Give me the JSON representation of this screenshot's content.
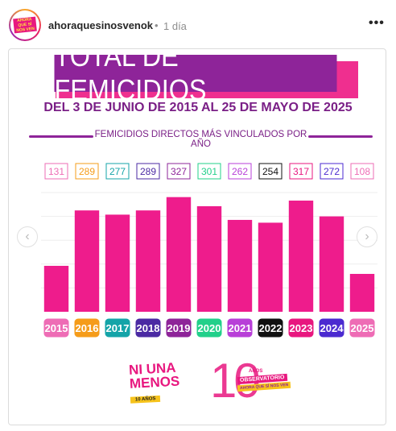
{
  "post": {
    "username": "ahoraquesinosvenok",
    "separator": "•",
    "time": "1 día",
    "more_icon": "more-horizontal-icon"
  },
  "avatar_logo_text": "AHORA QUE SÍ NOS VEN",
  "chart_data": {
    "type": "bar",
    "title": "TOTAL DE FEMICIDIOS",
    "subtitle": "DEL 3 DE JUNIO DE 2015 AL 25 DE MAYO DE 2025",
    "section_label": "FEMICIDIOS DIRECTOS MÁS VINCULADOS POR AÑO",
    "categories": [
      "2015",
      "2016",
      "2017",
      "2018",
      "2019",
      "2020",
      "2021",
      "2022",
      "2023",
      "2024",
      "2025"
    ],
    "values": [
      131,
      289,
      277,
      289,
      327,
      301,
      262,
      254,
      317,
      272,
      108
    ],
    "ylim": [
      0,
      340
    ],
    "bar_color": "#ee1c8c",
    "label_colors": [
      "#ee6cb5",
      "#f59c1a",
      "#14a4a8",
      "#4b2aa3",
      "#8e2499",
      "#22d08a",
      "#b83fd8",
      "#111111",
      "#e8177f",
      "#4b2ad0",
      "#ee6cb5"
    ],
    "grid": true
  },
  "logos": {
    "niunamenos": {
      "line1": "NI UNA",
      "line2": "MENOS",
      "line3": "10 AÑOS"
    },
    "observatorio": {
      "number": "10",
      "line1": "AÑOS",
      "line2": "OBSERVATORIO",
      "line3": "AHORA QUE SÍ NOS VEN"
    }
  },
  "colors": {
    "purple": "#8e2499",
    "pink": "#ee1c8c"
  }
}
